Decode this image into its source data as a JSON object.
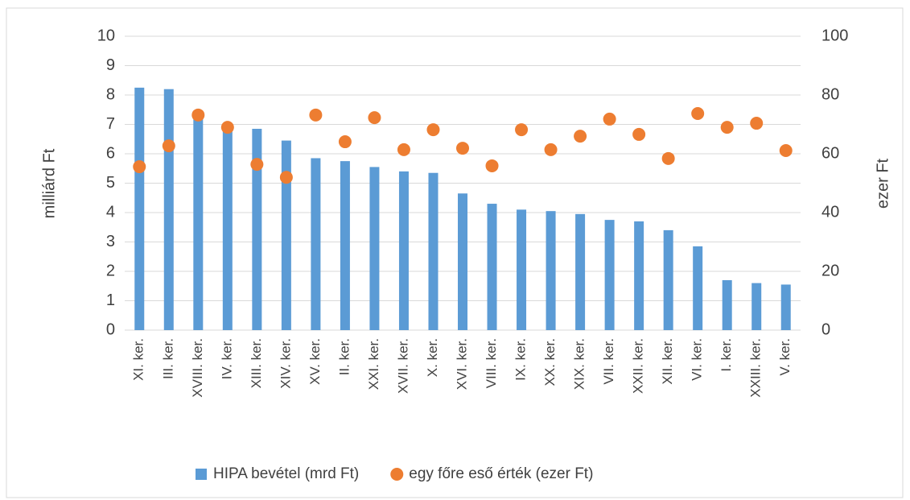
{
  "chart_data": {
    "type": "bar",
    "y_label": "milliárd Ft",
    "y2_label": "ezer Ft",
    "categories": [
      "XI. ker.",
      "III. ker.",
      "XVIII. ker.",
      "IV. ker.",
      "XIII. ker.",
      "XIV. ker.",
      "XV. ker.",
      "II. ker.",
      "XXI. ker.",
      "XVII. ker.",
      "X. ker.",
      "XVI. ker.",
      "VIII. ker.",
      "IX. ker.",
      "XX. ker.",
      "XIX. ker.",
      "VII. ker.",
      "XXII. ker.",
      "XII. ker.",
      "VI. ker.",
      "I. ker.",
      "XXIII. ker.",
      "V. ker."
    ],
    "series": [
      {
        "name": "HIPA bevétel (mrd Ft)",
        "type": "bar",
        "color": "#5b9bd5",
        "values": [
          8.25,
          8.2,
          7.3,
          6.95,
          6.85,
          6.45,
          5.85,
          5.75,
          5.55,
          5.4,
          5.35,
          4.65,
          4.3,
          4.1,
          4.05,
          3.95,
          3.75,
          3.7,
          3.4,
          2.85,
          1.7,
          1.6,
          1.55
        ]
      },
      {
        "name": "egy főre eső érték (ezer Ft)",
        "type": "scatter",
        "axis": "y2",
        "color": "#ed7d31",
        "values": [
          55.6,
          62.7,
          73.2,
          69,
          56.4,
          52,
          73.2,
          64.1,
          72.3,
          61.4,
          68.2,
          61.9,
          55.9,
          68.2,
          61.4,
          66,
          71.8,
          66.6,
          58.4,
          73.7,
          69,
          70.4,
          61.1
        ]
      }
    ],
    "ylim": [
      0,
      10
    ],
    "yticks": [
      0,
      1,
      2,
      3,
      4,
      5,
      6,
      7,
      8,
      9,
      10
    ],
    "y2lim": [
      0,
      100
    ],
    "y2ticks": [
      0,
      20,
      40,
      60,
      80,
      100
    ],
    "grid": true,
    "legend": "bottom"
  }
}
